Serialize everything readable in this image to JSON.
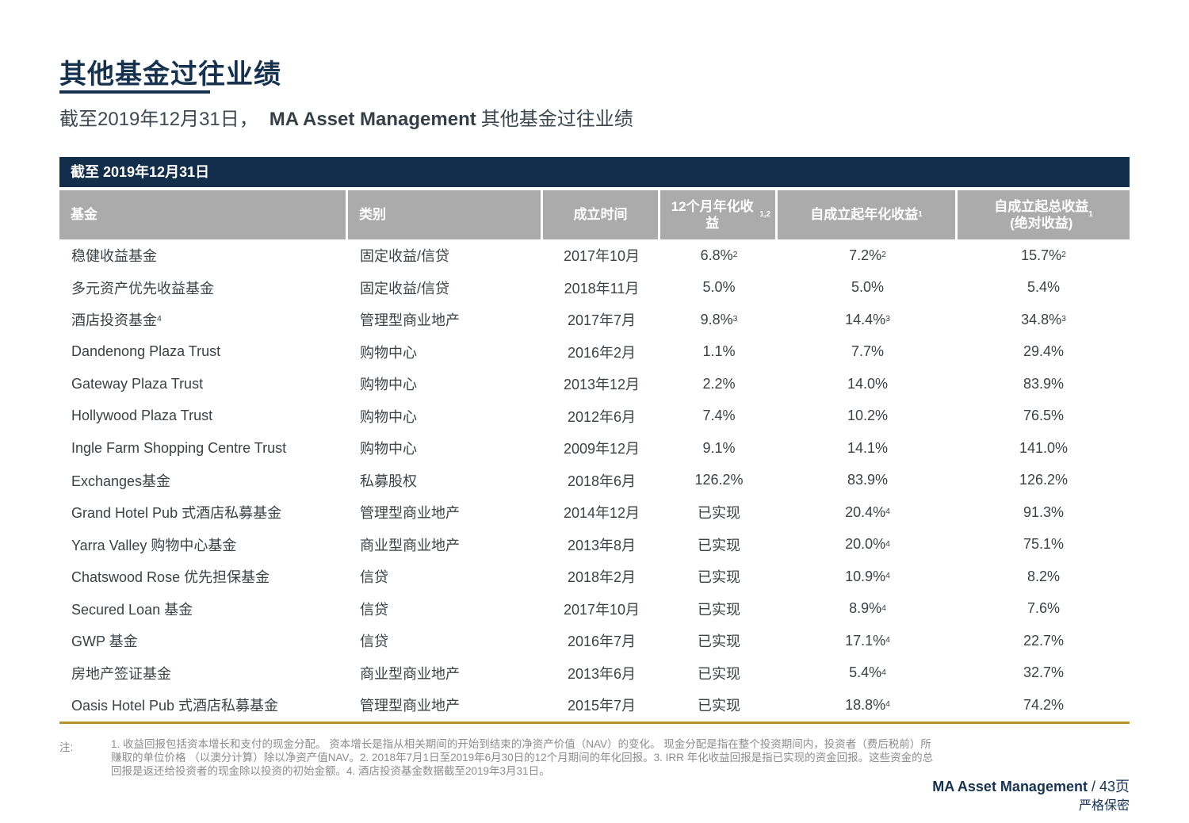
{
  "page": {
    "title": "其他基金过往业绩",
    "subtitle_prefix": "截至2019年12月31日，",
    "subtitle_brand": "MA Asset Management",
    "subtitle_suffix": "其他基金过往业绩"
  },
  "table": {
    "banner": "截至 2019年12月31日",
    "columns": [
      "基金",
      "类别",
      "成立时间",
      "12个月年化收益^1,2",
      "自成立起年化收益^1",
      "自成立起总收益\n(绝对收益) ^1"
    ],
    "rows": [
      [
        "稳健收益基金",
        "固定收益/信贷",
        "2017年10月",
        "6.8%^2",
        "7.2%^2",
        "15.7%^2"
      ],
      [
        "多元资产优先收益基金",
        "固定收益/信贷",
        "2018年11月",
        "5.0%",
        "5.0%",
        "5.4%"
      ],
      [
        "酒店投资基金^4",
        "管理型商业地产",
        "2017年7月",
        "9.8%^3",
        "14.4%^3",
        "34.8%^3"
      ],
      [
        "Dandenong Plaza Trust",
        "购物中心",
        "2016年2月",
        "1.1%",
        "7.7%",
        "29.4%"
      ],
      [
        "Gateway Plaza Trust",
        "购物中心",
        "2013年12月",
        "2.2%",
        "14.0%",
        "83.9%"
      ],
      [
        "Hollywood Plaza Trust",
        "购物中心",
        "2012年6月",
        "7.4%",
        "10.2%",
        "76.5%"
      ],
      [
        "Ingle Farm Shopping Centre Trust",
        "购物中心",
        "2009年12月",
        "9.1%",
        "14.1%",
        "141.0%"
      ],
      [
        "Exchanges基金",
        "私募股权",
        "2018年6月",
        "126.2%",
        "83.9%",
        "126.2%"
      ],
      [
        "Grand Hotel Pub 式酒店私募基金",
        "管理型商业地产",
        "2014年12月",
        "已实现",
        "20.4%^4",
        "91.3%"
      ],
      [
        "Yarra Valley 购物中心基金",
        "商业型商业地产",
        "2013年8月",
        "已实现",
        "20.0%^4",
        "75.1%"
      ],
      [
        "Chatswood Rose 优先担保基金",
        "信贷",
        "2018年2月",
        "已实现",
        "10.9%^4",
        "8.2%"
      ],
      [
        "Secured Loan 基金",
        "信贷",
        "2017年10月",
        "已实现",
        "8.9%^4",
        "7.6%"
      ],
      [
        "GWP 基金",
        "信贷",
        "2016年7月",
        "已实现",
        "17.1%^4",
        "22.7%"
      ],
      [
        "房地产签证基金",
        "商业型商业地产",
        "2013年6月",
        "已实现",
        "5.4%^4",
        "32.7%"
      ],
      [
        "Oasis Hotel Pub 式酒店私募基金",
        "管理型商业地产",
        "2015年7月",
        "已实现",
        "18.8%^4",
        "74.2%"
      ]
    ]
  },
  "footnotes": {
    "label": "注:",
    "text": "1. 收益回报包括资本增长和支付的现金分配。 资本增长是指从相关期间的开始到结束的净资产价值（NAV）的变化。 现金分配是指在整个投资期间内，投资者（费后税前）所赚取的单位价格 （以澳分计算）除以净资产值NAV。2. 2018年7月1日至2019年6月30日的12个月期间的年化回报。3. IRR 年化收益回报是指已实现的资金回报。这些资金的总回报是返还给投资者的现金除以投资的初始金额。4. 酒店投资基金数据截至2019年3月31日。"
  },
  "footer": {
    "brand": "MA Asset Management",
    "page_suffix": " / 43页",
    "confidential": "严格保密"
  },
  "colors": {
    "navy": "#16324F",
    "banner_navy": "#132E4A",
    "header_gray": "#ABABAB",
    "body_text": "#3C4146",
    "footnote_gray": "#8C8C8C",
    "gold_rule": "#B8922B"
  }
}
